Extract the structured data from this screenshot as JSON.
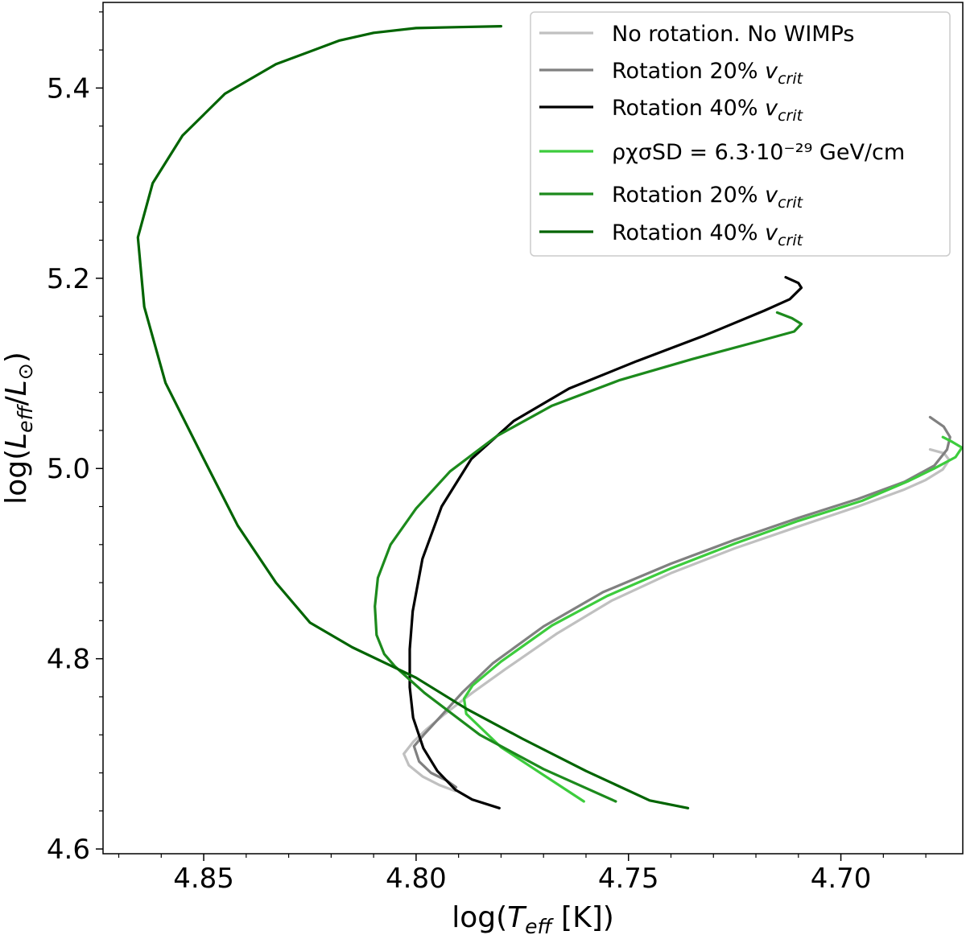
{
  "chart_data": {
    "type": "line",
    "title": "",
    "xlabel": "log(T_eff [K])",
    "ylabel": "log(L_eff/L_⊙)",
    "xlim": [
      4.8737,
      4.6713
    ],
    "ylim": [
      4.595,
      5.49
    ],
    "x_inverted": true,
    "x_ticks": [
      4.85,
      4.8,
      4.75,
      4.7
    ],
    "x_tick_labels": [
      "4.85",
      "4.80",
      "4.75",
      "4.70"
    ],
    "y_ticks": [
      4.6,
      4.8,
      5.0,
      5.2,
      5.4
    ],
    "y_tick_labels": [
      "4.6",
      "4.8",
      "5.0",
      "5.2",
      "5.4"
    ],
    "grid": false,
    "legend_position": "top-right",
    "series": [
      {
        "name": "No rotation. No WIMPs",
        "legend_label": "No rotation. No WIMPs",
        "color": "#c0c0c0",
        "points": [
          [
            4.7908,
            4.661
          ],
          [
            4.7944,
            4.667
          ],
          [
            4.7984,
            4.676
          ],
          [
            4.8017,
            4.688
          ],
          [
            4.8029,
            4.7
          ],
          [
            4.8006,
            4.713
          ],
          [
            4.7975,
            4.726
          ],
          [
            4.7935,
            4.741
          ],
          [
            4.7868,
            4.764
          ],
          [
            4.779,
            4.789
          ],
          [
            4.767,
            4.826
          ],
          [
            4.754,
            4.861
          ],
          [
            4.74,
            4.89
          ],
          [
            4.725,
            4.916
          ],
          [
            4.71,
            4.939
          ],
          [
            4.696,
            4.96
          ],
          [
            4.685,
            4.978
          ],
          [
            4.68,
            4.988
          ],
          [
            4.676,
            4.999
          ],
          [
            4.6745,
            5.009
          ],
          [
            4.6757,
            5.016
          ],
          [
            4.679,
            5.02
          ]
        ]
      },
      {
        "name": "Rotation 20% v_crit",
        "legend_label": "Rotation 20% ",
        "legend_sub": "crit",
        "color": "#808080",
        "points": [
          [
            4.7906,
            4.665
          ],
          [
            4.7928,
            4.672
          ],
          [
            4.7965,
            4.68
          ],
          [
            4.7993,
            4.692
          ],
          [
            4.8005,
            4.708
          ],
          [
            4.7982,
            4.72
          ],
          [
            4.7945,
            4.738
          ],
          [
            4.789,
            4.765
          ],
          [
            4.782,
            4.795
          ],
          [
            4.77,
            4.834
          ],
          [
            4.756,
            4.87
          ],
          [
            4.74,
            4.9
          ],
          [
            4.725,
            4.925
          ],
          [
            4.71,
            4.948
          ],
          [
            4.696,
            4.968
          ],
          [
            4.685,
            4.986
          ],
          [
            4.678,
            5.003
          ],
          [
            4.675,
            5.02
          ],
          [
            4.6743,
            5.033
          ],
          [
            4.6758,
            5.044
          ],
          [
            4.679,
            5.054
          ]
        ]
      },
      {
        "name": "Rotation 40% v_crit",
        "legend_label": "Rotation 40% ",
        "legend_sub": "crit",
        "color": "#000000",
        "points": [
          [
            4.7804,
            4.643
          ],
          [
            4.7868,
            4.652
          ],
          [
            4.7907,
            4.662
          ],
          [
            4.795,
            4.682
          ],
          [
            4.7983,
            4.706
          ],
          [
            4.8007,
            4.738
          ],
          [
            4.8015,
            4.77
          ],
          [
            4.8015,
            4.81
          ],
          [
            4.8008,
            4.85
          ],
          [
            4.7985,
            4.905
          ],
          [
            4.794,
            4.96
          ],
          [
            4.787,
            5.01
          ],
          [
            4.777,
            5.05
          ],
          [
            4.764,
            5.084
          ],
          [
            4.748,
            5.113
          ],
          [
            4.732,
            5.14
          ],
          [
            4.718,
            5.166
          ],
          [
            4.712,
            5.178
          ],
          [
            4.7093,
            5.19
          ],
          [
            4.71,
            5.195
          ],
          [
            4.713,
            5.201
          ]
        ]
      },
      {
        "name": "ρχσSD = 6.3·10^-29 GeV/cm",
        "legend_label": "ρχσSD = 6.3·10⁻²⁹ GeV/cm",
        "color": "#3dcc3d",
        "points": [
          [
            4.7605,
            4.65
          ],
          [
            4.78,
            4.707
          ],
          [
            4.7882,
            4.742
          ],
          [
            4.7887,
            4.758
          ],
          [
            4.7867,
            4.772
          ],
          [
            4.78,
            4.797
          ],
          [
            4.768,
            4.835
          ],
          [
            4.755,
            4.866
          ],
          [
            4.74,
            4.895
          ],
          [
            4.725,
            4.921
          ],
          [
            4.71,
            4.945
          ],
          [
            4.695,
            4.966
          ],
          [
            4.684,
            4.987
          ],
          [
            4.678,
            5.0
          ],
          [
            4.673,
            5.012
          ],
          [
            4.6715,
            5.022
          ],
          [
            4.6738,
            5.028
          ],
          [
            4.676,
            5.033
          ]
        ]
      },
      {
        "name": "Rotation 20% v_crit (WIMPs)",
        "legend_label": "Rotation 20% ",
        "legend_sub": "crit",
        "color": "#1c8a1c",
        "points": [
          [
            4.753,
            4.65
          ],
          [
            4.77,
            4.684
          ],
          [
            4.785,
            4.72
          ],
          [
            4.798,
            4.764
          ],
          [
            4.805,
            4.792
          ],
          [
            4.8075,
            4.805
          ],
          [
            4.8093,
            4.825
          ],
          [
            4.8097,
            4.855
          ],
          [
            4.809,
            4.885
          ],
          [
            4.806,
            4.92
          ],
          [
            4.8,
            4.958
          ],
          [
            4.792,
            4.997
          ],
          [
            4.781,
            5.034
          ],
          [
            4.768,
            5.066
          ],
          [
            4.752,
            5.093
          ],
          [
            4.735,
            5.115
          ],
          [
            4.72,
            5.133
          ],
          [
            4.711,
            5.144
          ],
          [
            4.7093,
            5.152
          ],
          [
            4.7115,
            5.158
          ],
          [
            4.715,
            5.164
          ]
        ]
      },
      {
        "name": "Rotation 40% v_crit (WIMPs)",
        "legend_label": "Rotation 40% ",
        "legend_sub": "crit",
        "color": "#006400",
        "points": [
          [
            4.736,
            4.643
          ],
          [
            4.745,
            4.651
          ],
          [
            4.76,
            4.682
          ],
          [
            4.775,
            4.716
          ],
          [
            4.788,
            4.747
          ],
          [
            4.8,
            4.78
          ],
          [
            4.815,
            4.812
          ],
          [
            4.825,
            4.838
          ],
          [
            4.833,
            4.88
          ],
          [
            4.842,
            4.94
          ],
          [
            4.85,
            5.01
          ],
          [
            4.859,
            5.09
          ],
          [
            4.864,
            5.17
          ],
          [
            4.8655,
            5.243
          ],
          [
            4.862,
            5.3
          ],
          [
            4.855,
            5.35
          ],
          [
            4.845,
            5.394
          ],
          [
            4.833,
            5.425
          ],
          [
            4.818,
            5.45
          ],
          [
            4.81,
            5.458
          ],
          [
            4.8,
            5.463
          ],
          [
            4.79,
            5.464
          ],
          [
            4.78,
            5.465
          ]
        ]
      }
    ]
  }
}
